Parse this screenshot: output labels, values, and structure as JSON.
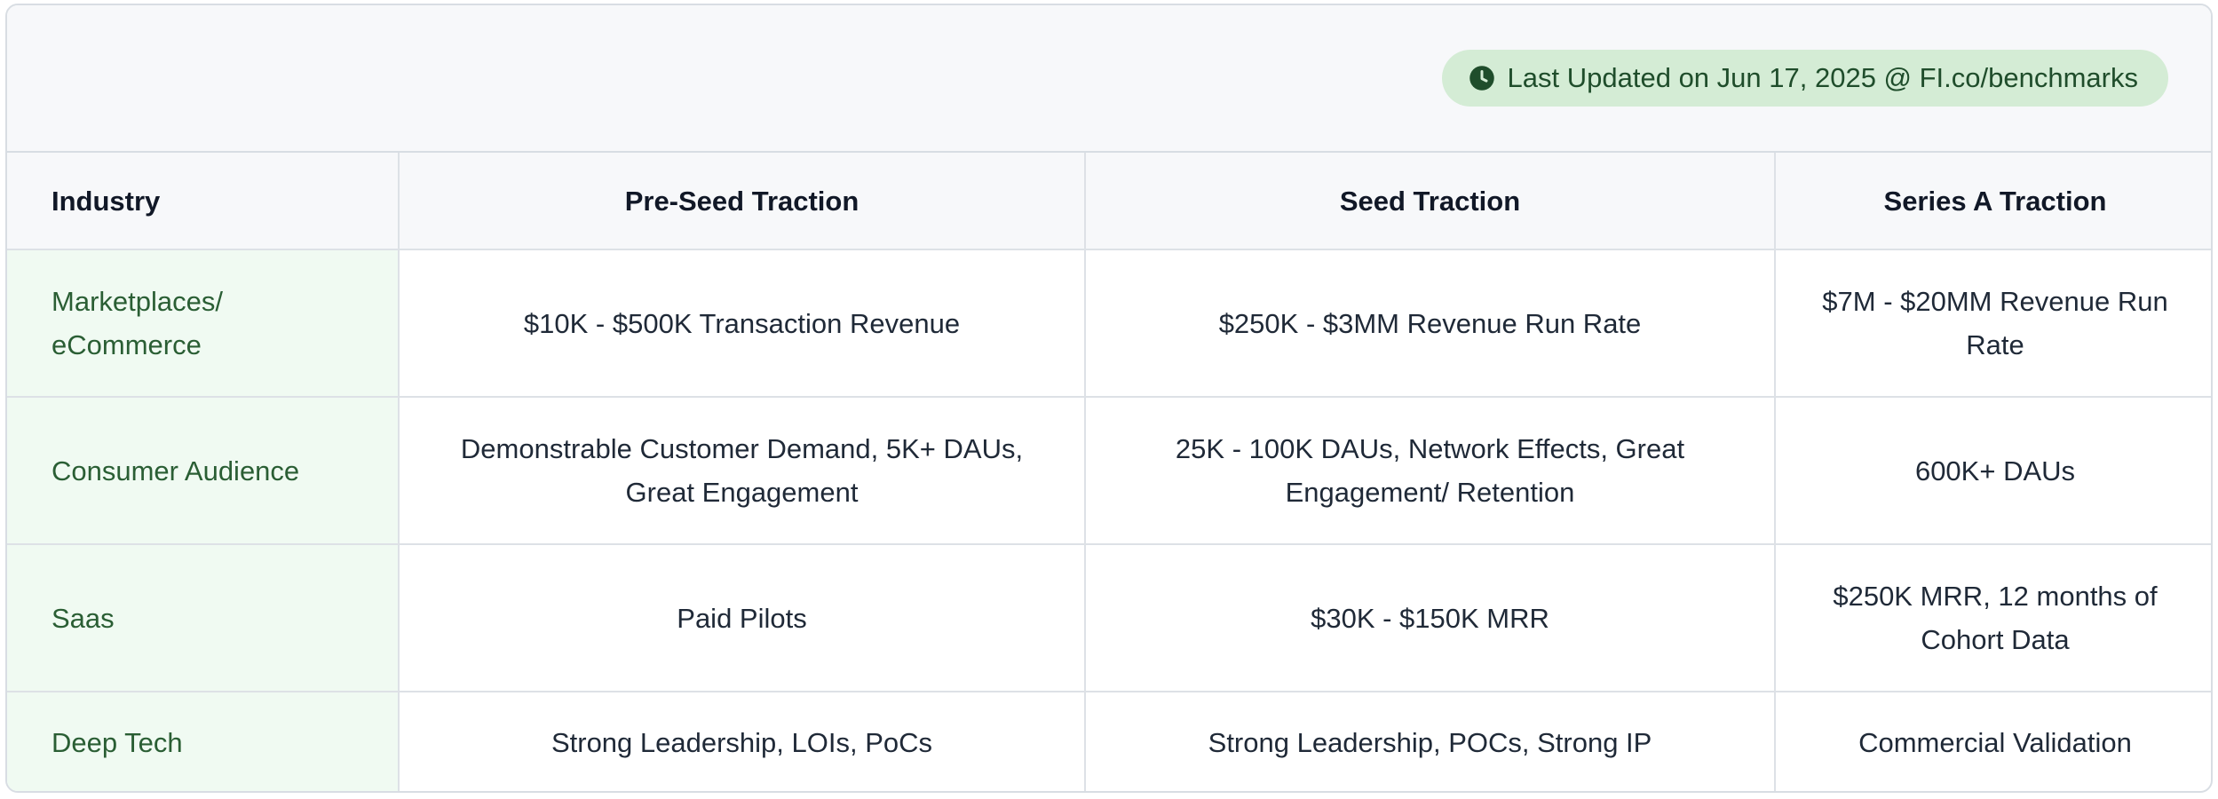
{
  "badge": {
    "icon": "clock-icon",
    "text": "Last Updated on Jun 17, 2025 @ FI.co/benchmarks"
  },
  "colors": {
    "badge_background": "#d4ecd5",
    "badge_text": "#1f4d2b",
    "industry_text": "#2a5e34",
    "industry_background": "#f0faf2",
    "header_background": "#f7f8fa"
  },
  "table": {
    "headers": [
      "Industry",
      "Pre-Seed Traction",
      "Seed Traction",
      "Series A Traction"
    ],
    "rows": [
      {
        "industry": "Marketplaces/ eCommerce",
        "pre_seed": "$10K - $500K Transaction Revenue",
        "seed": "$250K - $3MM Revenue Run Rate",
        "series_a": "$7M - $20MM Revenue Run Rate"
      },
      {
        "industry": "Consumer Audience",
        "pre_seed": "Demonstrable Customer Demand, 5K+ DAUs, Great Engagement",
        "seed": "25K - 100K DAUs, Network Effects, Great Engagement/ Retention",
        "series_a": "600K+ DAUs"
      },
      {
        "industry": "Saas",
        "pre_seed": "Paid Pilots",
        "seed": "$30K - $150K MRR",
        "series_a": "$250K MRR, 12 months of Cohort Data"
      },
      {
        "industry": "Deep Tech",
        "pre_seed": "Strong Leadership, LOIs, PoCs",
        "seed": "Strong Leadership, POCs, Strong IP",
        "series_a": "Commercial Validation"
      }
    ]
  }
}
